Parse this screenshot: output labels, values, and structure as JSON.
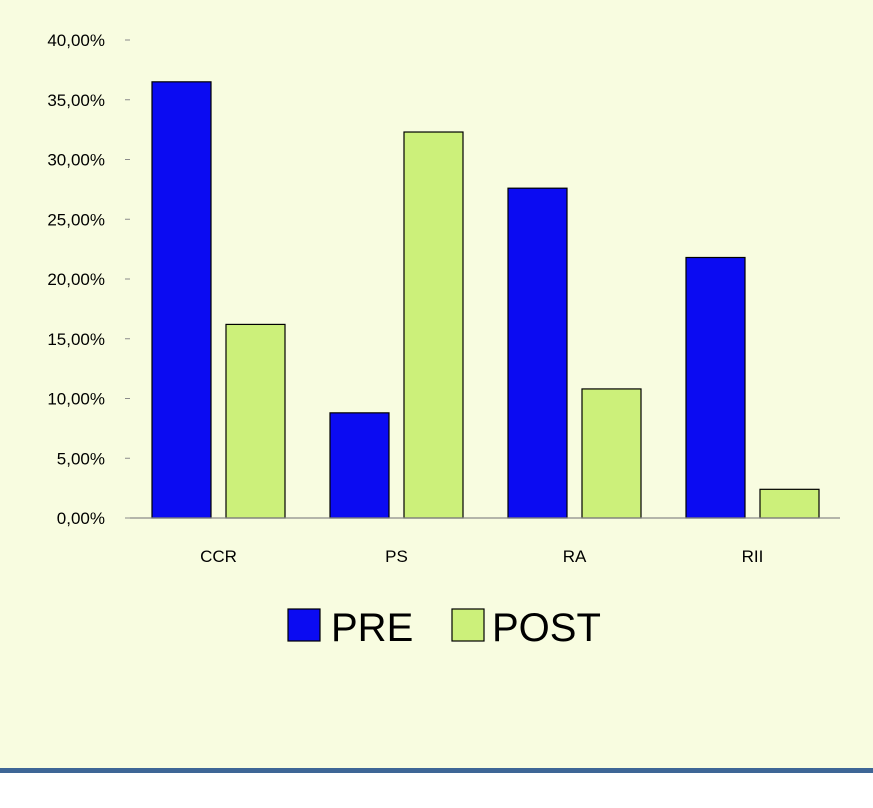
{
  "colors": {
    "plot_background": "#f8fce0",
    "page_background": "#ffffff",
    "footer_rule": "#3e6696",
    "axis": "#8a8a8a",
    "bar_outline": "#000000",
    "pre": "#0b0bf2",
    "post": "#ccf07a"
  },
  "chart_data": {
    "type": "bar",
    "title": "",
    "xlabel": "",
    "ylabel": "",
    "categories": [
      "CCR",
      "PS",
      "RA",
      "RII"
    ],
    "series": [
      {
        "name": "PRE",
        "values": [
          36.5,
          8.8,
          27.6,
          21.8
        ],
        "color": "#0b0bf2"
      },
      {
        "name": "POST",
        "values": [
          16.2,
          32.3,
          10.8,
          2.4
        ],
        "color": "#ccf07a"
      }
    ],
    "ylim": [
      0,
      40
    ],
    "y_ticks": [
      0,
      5,
      10,
      15,
      20,
      25,
      30,
      35,
      40
    ],
    "y_tick_labels": [
      "0,00%",
      "5,00%",
      "10,00%",
      "15,00%",
      "20,00%",
      "25,00%",
      "30,00%",
      "35,00%",
      "40,00%"
    ],
    "grid": false,
    "legend": {
      "position": "bottom",
      "entries": [
        "PRE",
        "POST"
      ]
    }
  }
}
